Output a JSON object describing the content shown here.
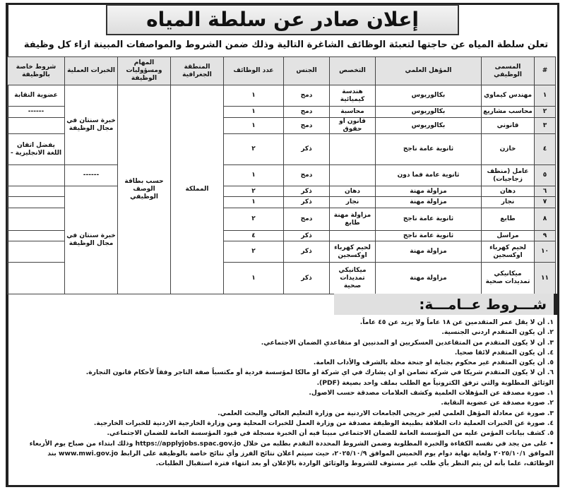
{
  "title": "إعلان صادر عن سلطة المياه",
  "subtitle": "تعلن سلطة المياه عن حاجتها لتعبئة الوظائف الشاغرة التالية وذلك ضمن الشروط والمواصفات المبينة ازاء كل وظيفة",
  "table": {
    "headers": [
      "#",
      "المسمى الوظيفي",
      "المؤهل العلمي",
      "التخصص",
      "الجنس",
      "عدد الوظائف",
      "المنطقة الجغرافية",
      "المهام ومسؤوليات الوظيفة",
      "الخبرات العملية",
      "شروط خاصة بالوظيفة"
    ],
    "region": "المملكة",
    "tasks": "حسب بطاقة الوصف الوظيفي",
    "experience_a": "خبرة سنتان في مجال الوظيفة",
    "experience_b": "------",
    "experience_c": "خبرة سنتان في مجال الوظيفة",
    "rows": [
      {
        "n": "١",
        "title": "مهندس كيماوي",
        "qual": "بكالوريوس",
        "spec": "هندسة كيميائية",
        "gender": "دمج",
        "count": "١",
        "special": "عضوية النقابة"
      },
      {
        "n": "٢",
        "title": "محاسب مشاريع",
        "qual": "بكالوريوس",
        "spec": "محاسبة",
        "gender": "دمج",
        "count": "١",
        "special": "------"
      },
      {
        "n": "٣",
        "title": "قانوني",
        "qual": "بكالوريوس",
        "spec": "قانون او حقوق",
        "gender": "دمج",
        "count": "١",
        "special": ""
      },
      {
        "n": "٤",
        "title": "خازن",
        "qual": "ثانوية عامة ناجح",
        "spec": "",
        "gender": "ذكر",
        "count": "٢",
        "special": "يفضل اتقان اللغة الانجليزية -"
      },
      {
        "n": "٥",
        "title": "عامل (منظف زجاجيات)",
        "qual": "ثانوية عامة فما دون",
        "spec": "",
        "gender": "دمج",
        "count": "١",
        "special": ""
      },
      {
        "n": "٦",
        "title": "دهان",
        "qual": "مزاولة مهنة",
        "spec": "دهان",
        "gender": "ذكر",
        "count": "٢",
        "special": ""
      },
      {
        "n": "٧",
        "title": "نجار",
        "qual": "مزاولة مهنة",
        "spec": "نجار",
        "gender": "ذكر",
        "count": "١",
        "special": ""
      },
      {
        "n": "٨",
        "title": "طابع",
        "qual": "ثانوية عامة ناجح",
        "spec": "مزاولة مهنة طابع",
        "gender": "دمج",
        "count": "٢",
        "special": ""
      },
      {
        "n": "٩",
        "title": "مراسل",
        "qual": "ثانوية عامة ناجح",
        "spec": "",
        "gender": "ذكر",
        "count": "٤",
        "special": ""
      },
      {
        "n": "١٠",
        "title": "لحيم كهرباء اوكسجين",
        "qual": "مزاولة مهنة",
        "spec": "لحيم كهرباء اوكسجين",
        "gender": "ذكر",
        "count": "٢",
        "special": ""
      },
      {
        "n": "١١",
        "title": "ميكانيكي تمديدات صحية",
        "qual": "مزاولة مهنة",
        "spec": "ميكانيكي تمديدات صحية",
        "gender": "ذكر",
        "count": "١",
        "special": ""
      }
    ]
  },
  "conditions": {
    "heading": "شـــروط عــامـــة:",
    "lines": [
      "١. أن لا يقل عمر المتقدمين عن ١٨ عاماً ولا يزيد عن ٤٥ عاماً.",
      "٢. أن يكون المتقدم اردني الجنسية.",
      "٣. أن لا يكون المتقدم من المتقاعدين العسكريين او المدنيين او متقاعدي الضمان الاجتماعي.",
      "٤. أن يكون المتقدم لائقا صحيا.",
      "٥. أن يكون المتقدم غير محكوم بجناية او جنحة مخلة بالشرف والأداب العامة.",
      "٦. أن لا يكون المتقدم شريكا في شركة تضامن او ان يشارك في اي شركة او مالكا لمؤسسة فردية أو مكتسباً صفة التاجر وفقاً لأحكام قانون التجارة.",
      "الوثائق المطلوبة والتي ترفق الكترونياً مع الطلب بملف واحد بصيغة (PDF).",
      "١. صورة مصدقة عن المؤهلات العلمية وكشف العلامات مصدقة حسب الاصول.",
      "٢. صورة مصدقة عن عضوية النقابة.",
      "٣. صورة عن معادلة المؤهل العلمي لغير خريجي الجامعات الاردنية من وزارة التعليم العالي والبحث العلمي.",
      "٤. صورة عن الخبرات العملية ذات العلاقة بطبيعة الوظيفة مصدقة من وزارة العمل للخبرات المحلية ومن وزارة الخارجية الاردنية للخبرات الخارجية.",
      "٥. كشف بيانات المؤمن عليه من المؤسسة العامة للضمان الاجتماعي مبينا فيه أن الخبرة مسجلة في قيود المؤسسة العامة للضمان الاجتماعي.",
      "• على من يجد في نفسه الكفاءة والخبرة المطلوبة وضمن الشروط المحددة التقدم بطلبه من خلال https://applyjobs.spac.gov.jo وذلك ابتداء من صباح يوم الأربعاء",
      "الموافق ٢٠٢٥/١٠/١ ولغاية نهاية دوام يوم الخميس الموافق ٢٠٢٥/١٠/٩، حيث سيتم اعلان نتائج الفرز وأي نتائج خاصة بالوظيفة على الرابط www.mwi.gov.jo بند",
      "الوظائف، علما بأنه لن يتم النظر بأي طلب غير مستوف للشروط والوثائق الواردة بالإعلان أو بعد انتهاء فترة استقبال الطلبات."
    ]
  }
}
